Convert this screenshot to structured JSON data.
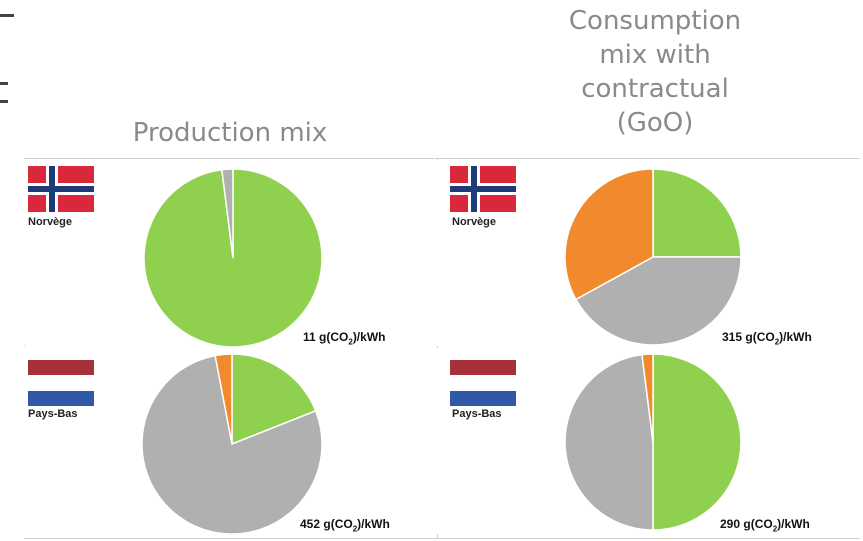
{
  "headers": {
    "left": "Production mix",
    "right_lines": [
      "Consumption",
      "mix with",
      "contractual",
      "(GoO)"
    ]
  },
  "colors": {
    "green": "#8fd14f",
    "gray": "#b0b0b0",
    "orange": "#f08a2c",
    "norway_red": "#d8283a",
    "norway_blue": "#1f3a78",
    "nl_red": "#a8303a",
    "nl_blue": "#2f58a8"
  },
  "chart_data": [
    {
      "type": "pie",
      "country": "Norvège",
      "mix": "Production mix",
      "intensity_value": "11",
      "intensity_unit_pre": " g(CO",
      "intensity_sub": "2",
      "intensity_unit_post": ")/kWh",
      "slices": [
        {
          "color": "green",
          "value": 98
        },
        {
          "color": "gray",
          "value": 2
        }
      ]
    },
    {
      "type": "pie",
      "country": "Norvège",
      "mix": "Consumption mix with contractual (GoO)",
      "intensity_value": "315",
      "intensity_unit_pre": " g(CO",
      "intensity_sub": "2",
      "intensity_unit_post": ")/kWh",
      "slices": [
        {
          "color": "green",
          "value": 25
        },
        {
          "color": "gray",
          "value": 42
        },
        {
          "color": "orange",
          "value": 33
        }
      ]
    },
    {
      "type": "pie",
      "country": "Pays-Bas",
      "mix": "Production mix",
      "intensity_value": "452",
      "intensity_unit_pre": " g(CO",
      "intensity_sub": "2",
      "intensity_unit_post": ")/kWh",
      "slices": [
        {
          "color": "green",
          "value": 19
        },
        {
          "color": "gray",
          "value": 78
        },
        {
          "color": "orange",
          "value": 3
        }
      ]
    },
    {
      "type": "pie",
      "country": "Pays-Bas",
      "mix": "Consumption mix with contractual (GoO)",
      "intensity_value": "290",
      "intensity_unit_pre": " g(CO",
      "intensity_sub": "2",
      "intensity_unit_post": ")/kWh",
      "slices": [
        {
          "color": "green",
          "value": 50
        },
        {
          "color": "gray",
          "value": 48
        },
        {
          "color": "orange",
          "value": 2
        }
      ]
    }
  ]
}
